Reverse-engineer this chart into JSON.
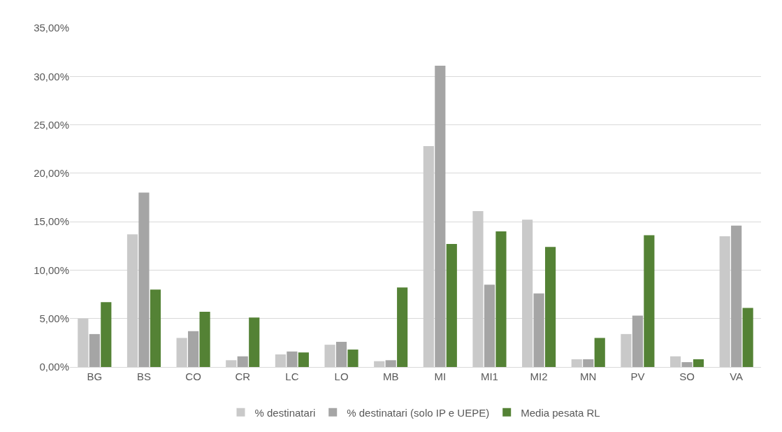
{
  "chart_data": {
    "type": "bar",
    "categories": [
      "BG",
      "BS",
      "CO",
      "CR",
      "LC",
      "LO",
      "MB",
      "MI",
      "MI1",
      "MI2",
      "MN",
      "PV",
      "SO",
      "VA"
    ],
    "series": [
      {
        "name": "% destinatari",
        "color": "#c9c9c9",
        "values": [
          5.0,
          13.7,
          3.0,
          0.7,
          1.3,
          2.3,
          0.6,
          22.8,
          16.1,
          15.2,
          0.8,
          3.4,
          1.1,
          13.5
        ]
      },
      {
        "name": "% destinatari (solo IP e UEPE)",
        "color": "#a5a5a5",
        "values": [
          3.4,
          18.0,
          3.7,
          1.1,
          1.6,
          2.6,
          0.7,
          31.1,
          8.5,
          7.6,
          0.8,
          5.3,
          0.5,
          14.6
        ]
      },
      {
        "name": "Media pesata RL",
        "color": "#548235",
        "values": [
          6.7,
          8.0,
          5.7,
          5.1,
          1.5,
          1.8,
          8.2,
          12.7,
          14.0,
          12.4,
          3.0,
          13.6,
          0.8,
          6.1
        ]
      }
    ],
    "ylim": [
      0,
      35
    ],
    "yticks": [
      {
        "value": 0,
        "label": "0,00%"
      },
      {
        "value": 5,
        "label": "5,00%"
      },
      {
        "value": 10,
        "label": "10,00%"
      },
      {
        "value": 15,
        "label": "15,00%"
      },
      {
        "value": 20,
        "label": "20,00%"
      },
      {
        "value": 25,
        "label": "25,00%"
      },
      {
        "value": 30,
        "label": "30,00%"
      },
      {
        "value": 35,
        "label": "35,00%"
      }
    ],
    "grid": "y",
    "legend": "bottom"
  }
}
